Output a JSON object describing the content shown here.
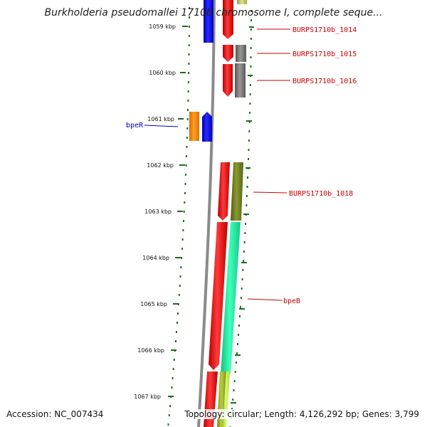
{
  "title": "Burkholderia pseudomallei 1710b chromosome I, complete seque...",
  "accession_text": "Accession: NC_007434",
  "topology_text": "Topology: circular; Length: 4,126,292 bp; Genes: 3,799",
  "scale_ticks": [
    {
      "label": "1059 kbp"
    },
    {
      "label": "1060 kbp"
    },
    {
      "label": "1061 kbp"
    },
    {
      "label": "1062 kbp"
    },
    {
      "label": "1063 kbp"
    },
    {
      "label": "1064 kbp"
    },
    {
      "label": "1065 kbp"
    },
    {
      "label": "1066 kbp"
    },
    {
      "label": "1067 kbp"
    }
  ],
  "gene_labels": [
    {
      "label": "BURPS1710b_1014",
      "color": "#cc0000"
    },
    {
      "label": "BURPS1710b_1015",
      "color": "#cc0000"
    },
    {
      "label": "BURPS1710b_1016",
      "color": "#cc0000"
    },
    {
      "label": "bpeR",
      "color": "#0000cc"
    },
    {
      "label": "BURPS1710b_1018",
      "color": "#cc0000"
    },
    {
      "label": "bpeB",
      "color": "#cc0000"
    }
  ],
  "colors": {
    "backbone": "#8a8a8a",
    "tick_marks": "#1f6b1f",
    "gene_red": "#ee1111",
    "gene_blue": "#1111ee",
    "gene_orange": "#ff8800",
    "gene_gray": "#777777",
    "gene_olive": "#6b7a1a",
    "gene_teal": "#22eea0",
    "gene_lime": "#bbee44",
    "gene_olive_light": "#99aa22"
  }
}
